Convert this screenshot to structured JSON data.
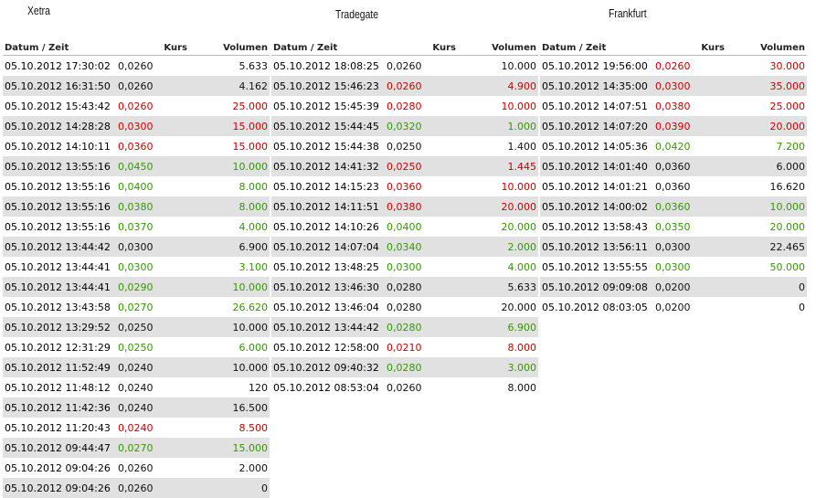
{
  "columns": [
    "Datum / Zeit",
    "Kurs",
    "Volumen"
  ],
  "panels": [
    {
      "title": "Xetra",
      "rows": [
        [
          "05.10.2012 17:30:02",
          "0,0260",
          "5.633",
          "#111111"
        ],
        [
          "05.10.2012 16:31:50",
          "0,0260",
          "4.162",
          "#111111"
        ],
        [
          "05.10.2012 15:43:42",
          "0,0260",
          "25.000",
          "#cc0000"
        ],
        [
          "05.10.2012 14:28:28",
          "0,0300",
          "15.000",
          "#cc0000"
        ],
        [
          "05.10.2012 14:10:11",
          "0,0360",
          "15.000",
          "#cc0000"
        ],
        [
          "05.10.2012 13:55:16",
          "0,0450",
          "10.000",
          "#339900"
        ],
        [
          "05.10.2012 13:55:16",
          "0,0400",
          "8.000",
          "#339900"
        ],
        [
          "05.10.2012 13:55:16",
          "0,0380",
          "8.000",
          "#339900"
        ],
        [
          "05.10.2012 13:55:16",
          "0,0370",
          "4.000",
          "#339900"
        ],
        [
          "05.10.2012 13:44:42",
          "0,0300",
          "6.900",
          "#111111"
        ],
        [
          "05.10.2012 13:44:41",
          "0,0300",
          "3.100",
          "#339900"
        ],
        [
          "05.10.2012 13:44:41",
          "0,0290",
          "10.000",
          "#339900"
        ],
        [
          "05.10.2012 13:43:58",
          "0,0270",
          "26.620",
          "#339900"
        ],
        [
          "05.10.2012 13:29:52",
          "0,0250",
          "10.000",
          "#111111"
        ],
        [
          "05.10.2012 12:31:29",
          "0,0250",
          "6.000",
          "#339900"
        ],
        [
          "05.10.2012 11:52:49",
          "0,0240",
          "10.000",
          "#111111"
        ],
        [
          "05.10.2012 11:48:12",
          "0,0240",
          "120",
          "#111111"
        ],
        [
          "05.10.2012 11:42:36",
          "0,0240",
          "16.500",
          "#111111"
        ],
        [
          "05.10.2012 11:20:43",
          "0,0240",
          "8.500",
          "#cc0000"
        ],
        [
          "05.10.2012 09:44:47",
          "0,0270",
          "15.000",
          "#339900"
        ],
        [
          "05.10.2012 09:04:26",
          "0,0260",
          "2.000",
          "#111111"
        ],
        [
          "05.10.2012 09:04:26",
          "0,0260",
          "0",
          "#111111"
        ]
      ]
    },
    {
      "title": "Tradegate",
      "rows": [
        [
          "05.10.2012 18:08:25",
          "0,0260",
          "10.000",
          "#111111"
        ],
        [
          "05.10.2012 15:46:23",
          "0,0260",
          "4.900",
          "#cc0000"
        ],
        [
          "05.10.2012 15:45:39",
          "0,0280",
          "10.000",
          "#cc0000"
        ],
        [
          "05.10.2012 15:44:45",
          "0,0320",
          "1.000",
          "#339900"
        ],
        [
          "05.10.2012 15:44:38",
          "0,0250",
          "1.400",
          "#111111"
        ],
        [
          "05.10.2012 14:41:32",
          "0,0250",
          "1.445",
          "#cc0000"
        ],
        [
          "05.10.2012 14:15:23",
          "0,0360",
          "10.000",
          "#cc0000"
        ],
        [
          "05.10.2012 14:11:51",
          "0,0380",
          "20.000",
          "#cc0000"
        ],
        [
          "05.10.2012 14:10:26",
          "0,0400",
          "20.000",
          "#339900"
        ],
        [
          "05.10.2012 14:07:04",
          "0,0340",
          "2.000",
          "#339900"
        ],
        [
          "05.10.2012 13:48:25",
          "0,0300",
          "4.000",
          "#339900"
        ],
        [
          "05.10.2012 13:46:30",
          "0,0280",
          "5.633",
          "#111111"
        ],
        [
          "05.10.2012 13:46:04",
          "0,0280",
          "20.000",
          "#111111"
        ],
        [
          "05.10.2012 13:44:42",
          "0,0280",
          "6.900",
          "#339900"
        ],
        [
          "05.10.2012 12:58:00",
          "0,0210",
          "8.000",
          "#cc0000"
        ],
        [
          "05.10.2012 09:40:32",
          "0,0280",
          "3.000",
          "#339900"
        ],
        [
          "05.10.2012 08:53:04",
          "0,0260",
          "8.000",
          "#111111"
        ]
      ]
    },
    {
      "title": "Frankfurt",
      "rows": [
        [
          "05.10.2012 19:56:00",
          "0,0260",
          "30.000",
          "#cc0000"
        ],
        [
          "05.10.2012 14:35:00",
          "0,0300",
          "35.000",
          "#cc0000"
        ],
        [
          "05.10.2012 14:07:51",
          "0,0380",
          "25.000",
          "#cc0000"
        ],
        [
          "05.10.2012 14:07:20",
          "0,0390",
          "20.000",
          "#cc0000"
        ],
        [
          "05.10.2012 14:05:36",
          "0,0420",
          "7.200",
          "#339900"
        ],
        [
          "05.10.2012 14:01:40",
          "0,0360",
          "6.000",
          "#111111"
        ],
        [
          "05.10.2012 14:01:21",
          "0,0360",
          "16.620",
          "#111111"
        ],
        [
          "05.10.2012 14:00:02",
          "0,0360",
          "10.000",
          "#339900"
        ],
        [
          "05.10.2012 13:58:43",
          "0,0350",
          "20.000",
          "#339900"
        ],
        [
          "05.10.2012 13:56:11",
          "0,0300",
          "22.465",
          "#111111"
        ],
        [
          "05.10.2012 13:55:55",
          "0,0300",
          "50.000",
          "#339900"
        ],
        [
          "05.10.2012 09:09:08",
          "0,0200",
          "0",
          "#111111"
        ],
        [
          "05.10.2012 08:03:05",
          "0,0200",
          "0",
          "#111111"
        ]
      ]
    }
  ]
}
